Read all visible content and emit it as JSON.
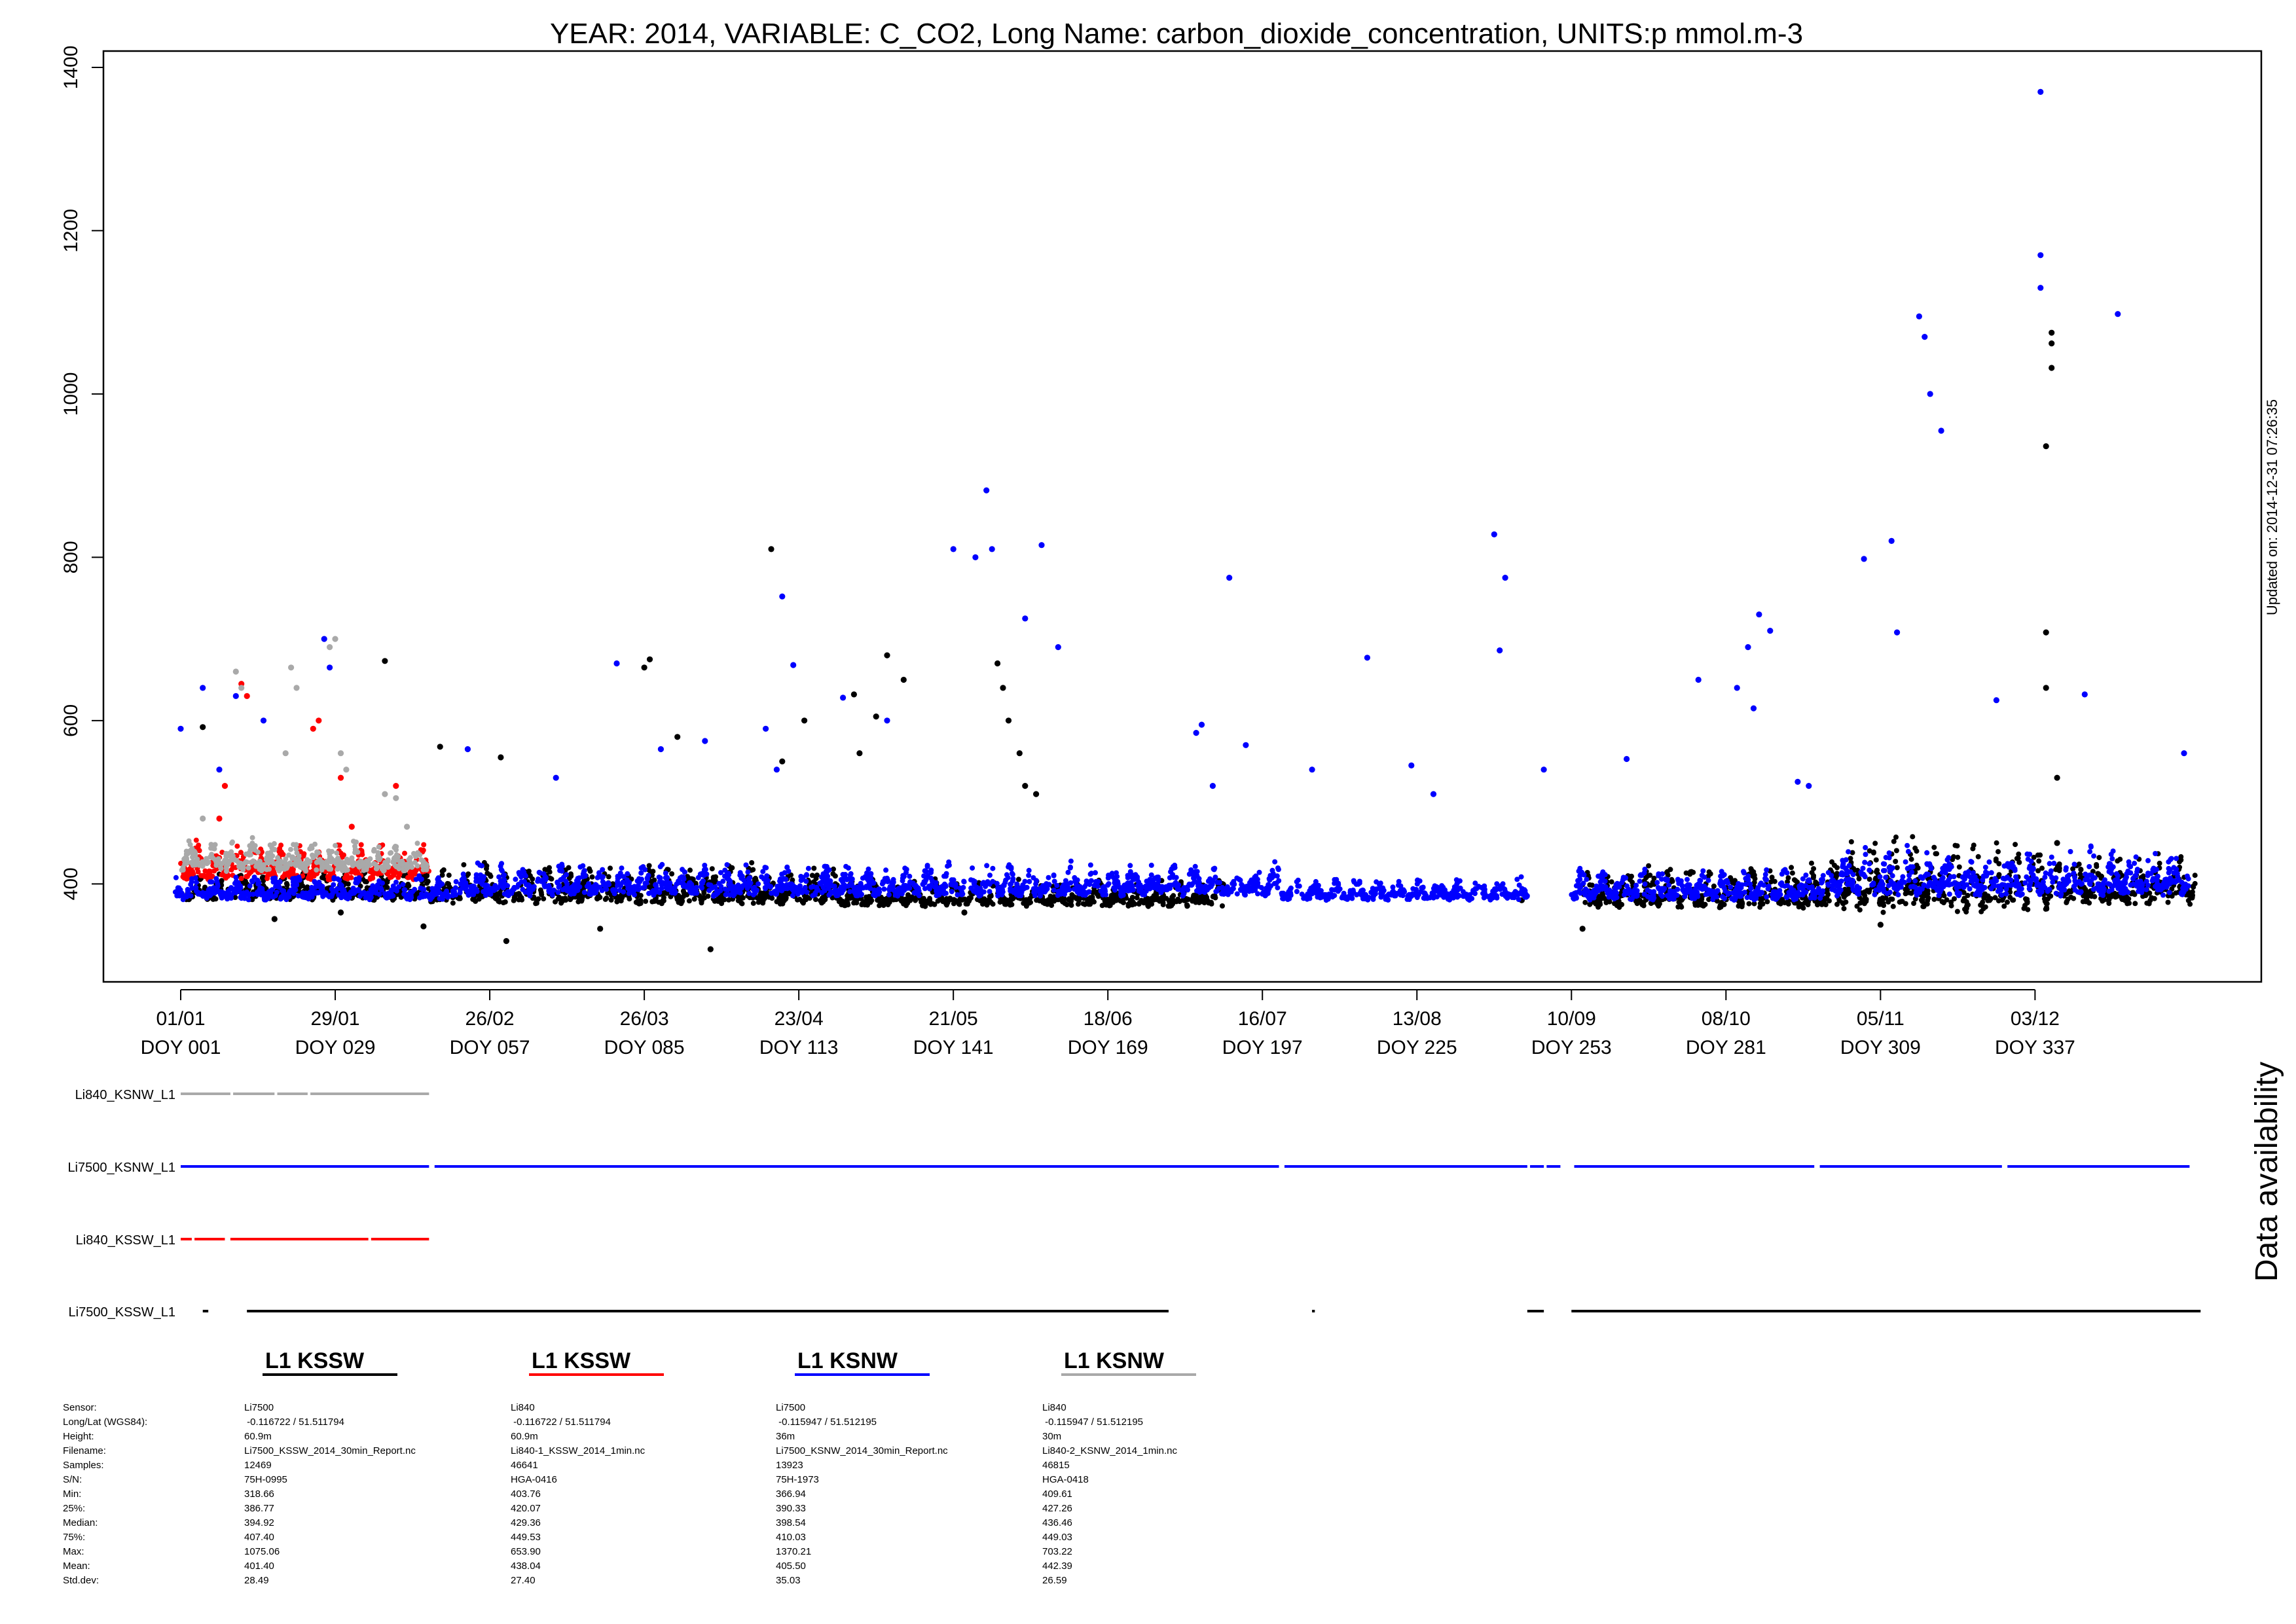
{
  "chart_data": {
    "type": "scatter",
    "title": "YEAR: 2014, VARIABLE: C_CO2, Long Name: carbon_dioxide_concentration, UNITS:p mmol.m-3",
    "xlabel": "",
    "ylabel": "",
    "updated": "Updated on: 2014-12-31 07:26:35",
    "ylim": [
      280,
      1420
    ],
    "xlim": [
      -13,
      378
    ],
    "yticks": [
      400,
      600,
      800,
      1000,
      1200,
      1400
    ],
    "xticks": [
      {
        "doy": 1,
        "date": "01/01",
        "label": "DOY 001"
      },
      {
        "doy": 29,
        "date": "29/01",
        "label": "DOY 029"
      },
      {
        "doy": 57,
        "date": "26/02",
        "label": "DOY 057"
      },
      {
        "doy": 85,
        "date": "26/03",
        "label": "DOY 085"
      },
      {
        "doy": 113,
        "date": "23/04",
        "label": "DOY 113"
      },
      {
        "doy": 141,
        "date": "21/05",
        "label": "DOY 141"
      },
      {
        "doy": 169,
        "date": "18/06",
        "label": "DOY 169"
      },
      {
        "doy": 197,
        "date": "16/07",
        "label": "DOY 197"
      },
      {
        "doy": 225,
        "date": "13/08",
        "label": "DOY 225"
      },
      {
        "doy": 253,
        "date": "10/09",
        "label": "DOY 253"
      },
      {
        "doy": 281,
        "date": "08/10",
        "label": "DOY 281"
      },
      {
        "doy": 309,
        "date": "05/11",
        "label": "DOY 309"
      },
      {
        "doy": 337,
        "date": "03/12",
        "label": "DOY 337"
      }
    ],
    "grid": false,
    "series": [
      {
        "name": "Li7500_KSSW_L1",
        "color": "#000000",
        "x": [
          5,
          18,
          30,
          38,
          45,
          48,
          59,
          60,
          77,
          85,
          86,
          91,
          97,
          108,
          110,
          114,
          123,
          124,
          127,
          129,
          132,
          143,
          149,
          150,
          151,
          153,
          154,
          156,
          244,
          255,
          309,
          339,
          339,
          339,
          340,
          340,
          340,
          341,
          341
        ],
        "y": [
          592,
          357,
          365,
          673,
          348,
          568,
          555,
          330,
          345,
          665,
          675,
          580,
          320,
          810,
          550,
          600,
          632,
          560,
          605,
          680,
          650,
          365,
          670,
          640,
          600,
          560,
          520,
          510,
          380,
          345,
          350,
          640,
          708,
          936,
          1032,
          1062,
          1075,
          530,
          450
        ],
        "bands": [
          {
            "x": [
              2,
              46
            ],
            "ymin": 380,
            "ymax": 420
          },
          {
            "x": [
              46,
              120
            ],
            "ymin": 375,
            "ymax": 430
          },
          {
            "x": [
              120,
              190
            ],
            "ymin": 372,
            "ymax": 410
          },
          {
            "x": [
              255,
              300
            ],
            "ymin": 370,
            "ymax": 430
          },
          {
            "x": [
              300,
              340
            ],
            "ymin": 365,
            "ymax": 470
          },
          {
            "x": [
              340,
              366
            ],
            "ymin": 375,
            "ymax": 440
          }
        ]
      },
      {
        "name": "Li840_KSSW_L1",
        "color": "#ff0000",
        "x": [
          8,
          9,
          12,
          13,
          25,
          26,
          30,
          32,
          40
        ],
        "y": [
          480,
          520,
          645,
          630,
          590,
          600,
          530,
          470,
          520
        ],
        "bands": [
          {
            "x": [
              1,
              46
            ],
            "ymin": 405,
            "ymax": 455
          }
        ]
      },
      {
        "name": "Li7500_KSNW_L1",
        "color": "#0000ff",
        "x": [
          1,
          5,
          8,
          11,
          16,
          27,
          28,
          53,
          69,
          80,
          88,
          96,
          107,
          109,
          110,
          112,
          121,
          129,
          141,
          145,
          147,
          148,
          154,
          157,
          160,
          185,
          186,
          188,
          191,
          194,
          206,
          216,
          224,
          228,
          239,
          240,
          241,
          248,
          263,
          276,
          283,
          285,
          286,
          287,
          289,
          294,
          296,
          306,
          311,
          312,
          316,
          317,
          318,
          320,
          330,
          338,
          338,
          338,
          346,
          352,
          364
        ],
        "y": [
          590,
          640,
          540,
          630,
          600,
          700,
          665,
          565,
          530,
          670,
          565,
          575,
          590,
          540,
          752,
          668,
          628,
          600,
          810,
          800,
          882,
          810,
          725,
          815,
          690,
          585,
          595,
          520,
          775,
          570,
          540,
          677,
          545,
          510,
          828,
          686,
          775,
          540,
          553,
          650,
          640,
          690,
          615,
          730,
          710,
          525,
          520,
          798,
          820,
          708,
          1095,
          1070,
          1000,
          955,
          625,
          1370,
          1170,
          1130,
          632,
          1098,
          560
        ],
        "bands": [
          {
            "x": [
              0,
              52
            ],
            "ymin": 380,
            "ymax": 415
          },
          {
            "x": [
              52,
              200
            ],
            "ymin": 385,
            "ymax": 430
          },
          {
            "x": [
              200,
              245
            ],
            "ymin": 380,
            "ymax": 410
          },
          {
            "x": [
              253,
              300
            ],
            "ymin": 380,
            "ymax": 425
          },
          {
            "x": [
              300,
              365
            ],
            "ymin": 385,
            "ymax": 450
          }
        ]
      },
      {
        "name": "Li840_KSNW_L1",
        "color": "#a9a9a9",
        "x": [
          5,
          11,
          12,
          20,
          21,
          22,
          28,
          29,
          30,
          31,
          38,
          40,
          42
        ],
        "y": [
          480,
          660,
          640,
          560,
          665,
          640,
          690,
          700,
          560,
          540,
          510,
          505,
          470
        ],
        "bands": [
          {
            "x": [
              1,
              46
            ],
            "ymin": 415,
            "ymax": 460
          }
        ]
      }
    ]
  },
  "availability": {
    "side_label": "Data availability",
    "rows": [
      {
        "label": "Li840_KSNW_L1",
        "color": "#a9a9a9",
        "segments": [
          [
            1,
            10
          ],
          [
            10.5,
            18
          ],
          [
            18.5,
            24
          ],
          [
            24.5,
            46
          ]
        ]
      },
      {
        "label": "Li7500_KSNW_L1",
        "color": "#0000ff",
        "segments": [
          [
            1,
            46
          ],
          [
            47,
            200
          ],
          [
            201,
            245
          ],
          [
            245.5,
            248
          ],
          [
            248.5,
            251
          ],
          [
            253.5,
            297
          ],
          [
            298,
            331
          ],
          [
            332,
            365
          ]
        ]
      },
      {
        "label": "Li840_KSSW_L1",
        "color": "#ff0000",
        "segments": [
          [
            1,
            3
          ],
          [
            3.5,
            9
          ],
          [
            10,
            35
          ],
          [
            35.5,
            46
          ]
        ]
      },
      {
        "label": "Li7500_KSSW_L1",
        "color": "#000000",
        "segments": [
          [
            5,
            6
          ],
          [
            13,
            180
          ],
          [
            206,
            206.5
          ],
          [
            245,
            248
          ],
          [
            253,
            367
          ]
        ]
      }
    ]
  },
  "legend": [
    {
      "title": "L1 KSSW",
      "color": "#000000"
    },
    {
      "title": "L1 KSSW",
      "color": "#ff0000"
    },
    {
      "title": "L1 KSNW",
      "color": "#0000ff"
    },
    {
      "title": "L1 KSNW",
      "color": "#a9a9a9"
    }
  ],
  "stats": {
    "row_labels": [
      "Sensor:",
      "Long/Lat (WGS84):",
      "Height:",
      "Filename:",
      "Samples:",
      "S/N:",
      "Min:",
      "25%:",
      "Median:",
      "75%:",
      "Max:",
      "Mean:",
      "Std.dev:"
    ],
    "columns": [
      [
        "Li7500",
        " -0.116722 / 51.511794",
        "60.9m",
        "Li7500_KSSW_2014_30min_Report.nc",
        "12469",
        "75H-0995",
        "318.66",
        "386.77",
        "394.92",
        "407.40",
        "1075.06",
        "401.40",
        "28.49"
      ],
      [
        "Li840",
        " -0.116722 / 51.511794",
        "60.9m",
        "Li840-1_KSSW_2014_1min.nc",
        "46641",
        "HGA-0416",
        "403.76",
        "420.07",
        "429.36",
        "449.53",
        "653.90",
        "438.04",
        "27.40"
      ],
      [
        "Li7500",
        " -0.115947 / 51.512195",
        "36m",
        "Li7500_KSNW_2014_30min_Report.nc",
        "13923",
        "75H-1973",
        "366.94",
        "390.33",
        "398.54",
        "410.03",
        "1370.21",
        "405.50",
        "35.03"
      ],
      [
        "Li840",
        " -0.115947 / 51.512195",
        "30m",
        "Li840-2_KSNW_2014_1min.nc",
        "46815",
        "HGA-0418",
        "409.61",
        "427.26",
        "436.46",
        "449.03",
        "703.22",
        "442.39",
        "26.59"
      ]
    ]
  }
}
